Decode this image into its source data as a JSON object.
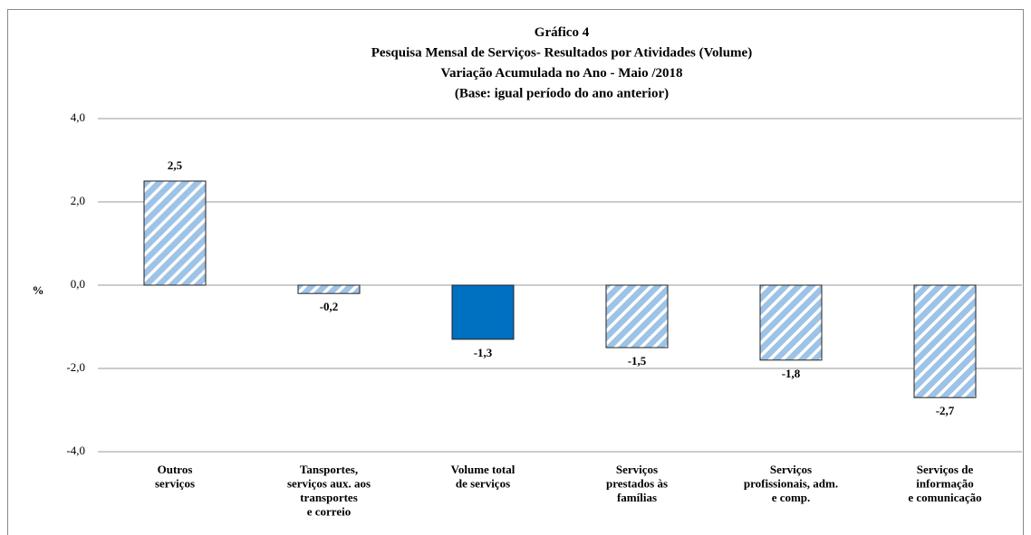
{
  "chart_data": {
    "type": "bar",
    "title": "Gráfico 4\nPesquisa Mensal de Serviços- Resultados por Atividades (Volume)\nVariação Acumulada no Ano - Maio /2018\n(Base: igual período  do ano anterior)",
    "y_label": "%",
    "categories": [
      "Outros\nserviços",
      "Tansportes,\nserviços aux. aos\ntransportes\ne correio",
      "Volume total\nde serviços",
      "Serviços\nprestados às\nfamílias",
      "Serviços\nprofissionais, adm.\ne comp.",
      "Serviços de\ninformação\ne comunicação"
    ],
    "values": [
      2.5,
      -0.2,
      -1.3,
      -1.5,
      -1.8,
      -2.7
    ],
    "value_labels": [
      "2,5",
      "-0,2",
      "-1,3",
      "-1,5",
      "-1,8",
      "-2,7"
    ],
    "colors": [
      "#9dc3e6",
      "#9dc3e6",
      "#0070c0",
      "#9dc3e6",
      "#9dc3e6",
      "#9dc3e6"
    ],
    "hatched": [
      true,
      true,
      false,
      true,
      true,
      true
    ],
    "ylim": [
      -4,
      4
    ],
    "yticks": [
      {
        "value": -4,
        "label": "-4,0"
      },
      {
        "value": -2,
        "label": "-2,0"
      },
      {
        "value": 0,
        "label": "0,0"
      },
      {
        "value": 2,
        "label": "2,0"
      },
      {
        "value": 4,
        "label": "4,0"
      }
    ],
    "grid": true
  }
}
